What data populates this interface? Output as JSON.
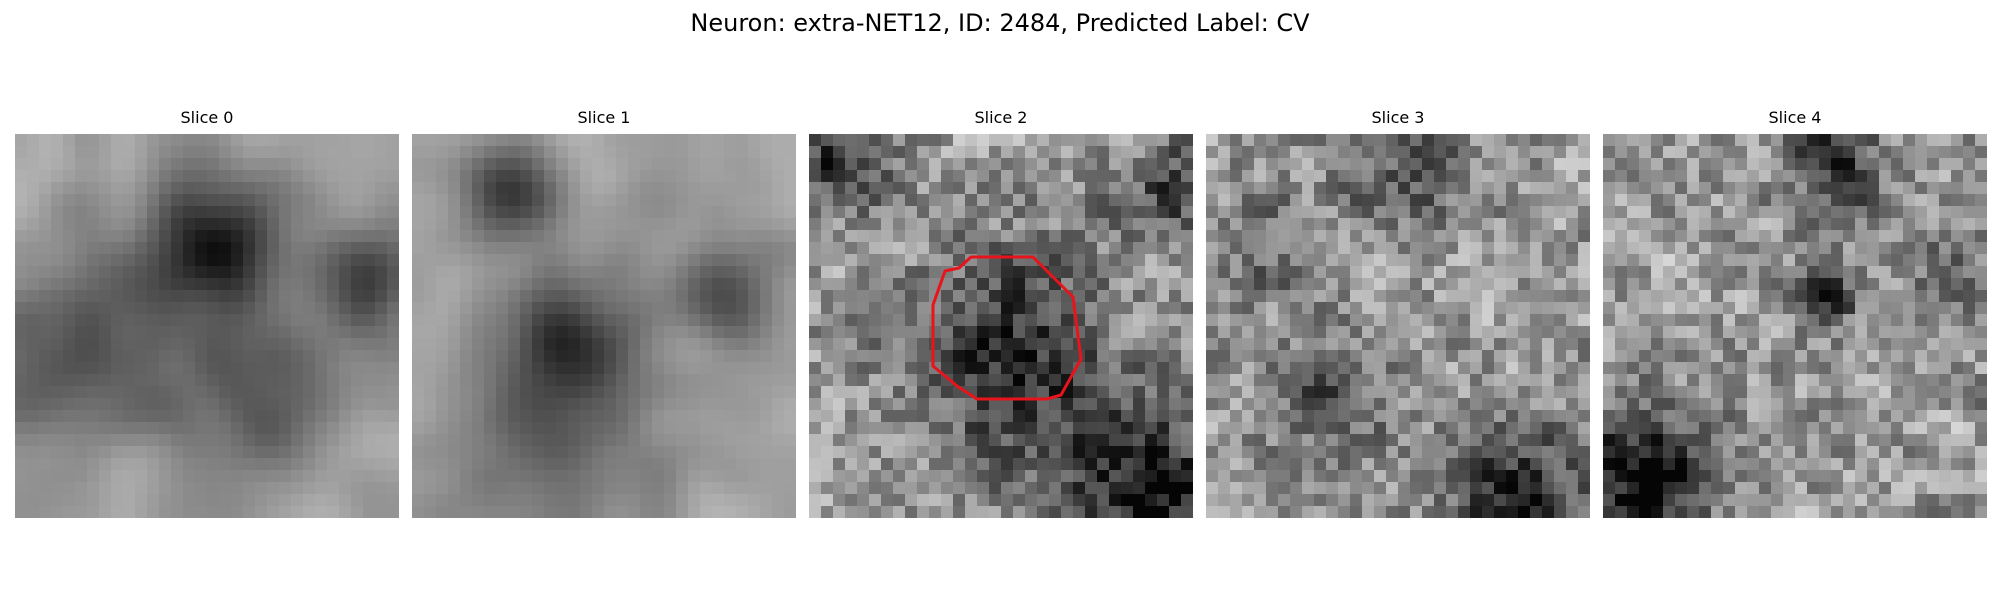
{
  "figure": {
    "title": "Neuron: extra-NET12, ID: 2484, Predicted Label: CV"
  },
  "colors": {
    "background": "#ffffff",
    "text": "#000000",
    "roi_outline": "#e8141c",
    "colormap": "grayscale"
  },
  "slices": [
    {
      "label": "Slice 0",
      "has_roi_outline": false
    },
    {
      "label": "Slice 1",
      "has_roi_outline": false
    },
    {
      "label": "Slice 2",
      "has_roi_outline": true
    },
    {
      "label": "Slice 3",
      "has_roi_outline": false
    },
    {
      "label": "Slice 4",
      "has_roi_outline": false
    }
  ],
  "grid_resolution": 32
}
